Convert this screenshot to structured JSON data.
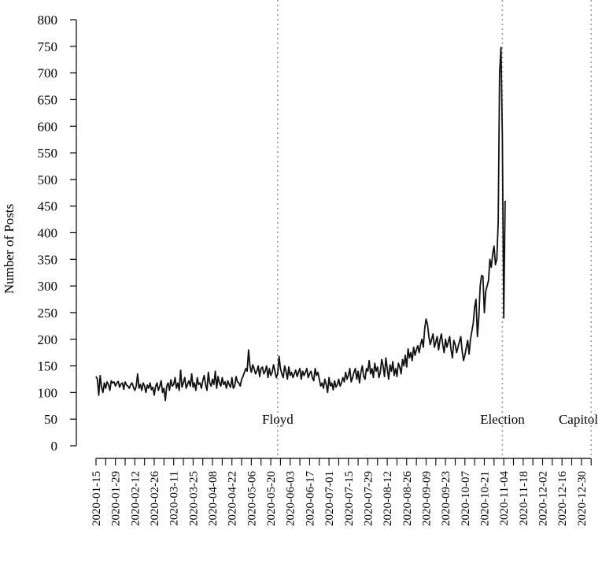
{
  "chart_data": {
    "type": "line",
    "title": "",
    "xlabel": "",
    "ylabel": "Number of Posts",
    "ylim": [
      0,
      800
    ],
    "y_ticks": [
      0,
      50,
      100,
      150,
      200,
      250,
      300,
      350,
      400,
      450,
      500,
      550,
      600,
      650,
      700,
      750,
      800
    ],
    "xlim": [
      "2020-01-15",
      "2021-01-11"
    ],
    "x_tick_labels": [
      "2020-01-15",
      "2020-01-29",
      "2020-02-12",
      "2020-02-26",
      "2020-03-11",
      "2020-03-25",
      "2020-04-08",
      "2020-04-22",
      "2020-05-06",
      "2020-05-20",
      "2020-06-03",
      "2020-06-17",
      "2020-07-01",
      "2020-07-15",
      "2020-07-29",
      "2020-08-12",
      "2020-08-26",
      "2020-09-09",
      "2020-09-23",
      "2020-10-07",
      "2020-10-21",
      "2020-11-04",
      "2020-11-18",
      "2020-12-02",
      "2020-12-16",
      "2020-12-30"
    ],
    "grid": false,
    "legend": "none",
    "line_color": "#111111",
    "event_line_color": "#9a9a9a",
    "events": [
      {
        "label": "Floyd",
        "date": "2020-05-25"
      },
      {
        "label": "Election",
        "date": "2020-11-03"
      },
      {
        "label": "Capitol",
        "date": "2021-01-06"
      }
    ],
    "series": [
      {
        "x_start": "2020-01-15",
        "x_step_days": 1,
        "values": [
          130,
          125,
          95,
          132,
          110,
          100,
          118,
          108,
          120,
          115,
          104,
          122,
          118,
          120,
          112,
          118,
          121,
          110,
          116,
          118,
          106,
          120,
          114,
          112,
          108,
          115,
          118,
          110,
          104,
          112,
          135,
          108,
          115,
          104,
          118,
          112,
          100,
          114,
          108,
          118,
          105,
          110,
          95,
          112,
          118,
          104,
          112,
          122,
          100,
          108,
          85,
          112,
          118,
          104,
          124,
          112,
          115,
          128,
          108,
          118,
          104,
          142,
          110,
          118,
          128,
          108,
          115,
          122,
          112,
          135,
          110,
          118,
          104,
          128,
          115,
          118,
          108,
          122,
          132,
          115,
          104,
          138,
          118,
          112,
          125,
          115,
          140,
          108,
          130,
          118,
          112,
          128,
          115,
          120,
          108,
          122,
          115,
          110,
          128,
          108,
          112,
          130,
          120,
          118,
          112,
          125,
          130,
          138,
          145,
          140,
          180,
          150,
          138,
          152,
          145,
          135,
          140,
          150,
          130,
          145,
          148,
          135,
          140,
          150,
          128,
          145,
          132,
          138,
          152,
          140,
          128,
          135,
          168,
          145,
          135,
          128,
          150,
          140,
          125,
          148,
          132,
          138,
          128,
          135,
          142,
          130,
          138,
          145,
          125,
          140,
          132,
          138,
          145,
          128,
          135,
          140,
          128,
          122,
          145,
          132,
          138,
          125,
          112,
          118,
          108,
          125,
          115,
          100,
          128,
          112,
          118,
          105,
          122,
          110,
          115,
          125,
          112,
          118,
          128,
          120,
          138,
          125,
          132,
          145,
          120,
          128,
          138,
          145,
          125,
          140,
          118,
          138,
          150,
          130,
          125,
          145,
          140,
          160,
          135,
          145,
          128,
          155,
          140,
          148,
          128,
          138,
          162,
          150,
          130,
          165,
          145,
          125,
          152,
          140,
          158,
          132,
          145,
          130,
          155,
          148,
          135,
          162,
          150,
          170,
          148,
          182,
          165,
          175,
          160,
          185,
          170,
          180,
          188,
          175,
          190,
          200,
          185,
          220,
          238,
          228,
          205,
          190,
          200,
          210,
          185,
          195,
          205,
          180,
          198,
          210,
          190,
          175,
          200,
          185,
          195,
          205,
          180,
          165,
          198,
          190,
          175,
          185,
          195,
          205,
          178,
          160,
          170,
          185,
          198,
          172,
          200,
          215,
          230,
          260,
          275,
          205,
          240,
          300,
          320,
          318,
          250,
          290,
          300,
          310,
          350,
          335,
          360,
          375,
          340,
          350,
          420,
          700,
          748,
          580,
          240,
          460
        ]
      }
    ],
    "annotations": [
      "Floyd",
      "Election",
      "Capitol"
    ]
  }
}
